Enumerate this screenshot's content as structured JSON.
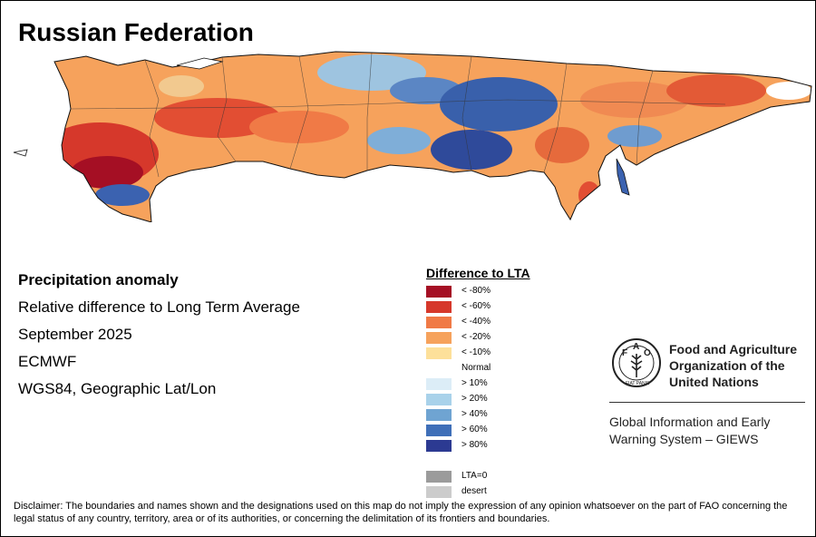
{
  "title": "Russian Federation",
  "info": {
    "variable": "Precipitation anomaly",
    "description": "Relative difference to Long Term Average",
    "period": "September 2025",
    "source": "ECMWF",
    "projection": "WGS84, Geographic Lat/Lon"
  },
  "legend": {
    "title": "Difference to LTA",
    "items": [
      {
        "label": "< -80%",
        "color": "#a50f24"
      },
      {
        "label": "< -60%",
        "color": "#d6382b"
      },
      {
        "label": "< -40%",
        "color": "#f07a46"
      },
      {
        "label": "< -20%",
        "color": "#f6a25c"
      },
      {
        "label": "< -10%",
        "color": "#fde09a"
      },
      {
        "label": "Normal",
        "color": null
      },
      {
        "label": "> 10%",
        "color": "#dcedf7"
      },
      {
        "label": "> 20%",
        "color": "#a9d2ea"
      },
      {
        "label": "> 40%",
        "color": "#6fa4d2"
      },
      {
        "label": "> 60%",
        "color": "#3f6fb8"
      },
      {
        "label": "> 80%",
        "color": "#2c3a92"
      },
      {
        "label": "",
        "color": null
      },
      {
        "label": "LTA=0",
        "color": "#9b9b9b"
      },
      {
        "label": "desert",
        "color": "#cccccc"
      }
    ]
  },
  "logo": {
    "org_line1": "Food and Agriculture",
    "org_line2": "Organization of the",
    "org_line3": "United Nations",
    "emblem_text": "FAO",
    "giews_line1": "Global Information and Early",
    "giews_line2": "Warning System – GIEWS"
  },
  "disclaimer": "Disclaimer: The boundaries and names shown and the designations used on this map do not imply the expression of any opinion whatsoever on the part of FAO concerning the legal status of any country, territory, area or of its authorities, or concerning the delimitation of its frontiers and boundaries."
}
